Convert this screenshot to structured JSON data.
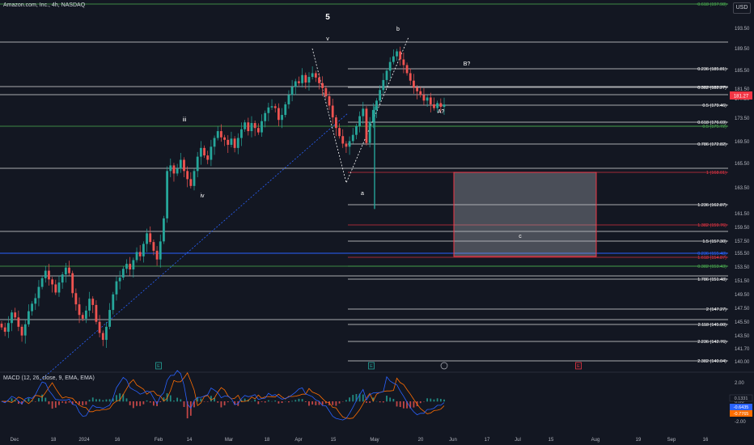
{
  "header": {
    "symbol": "Amazon.com, Inc., 4h, NASDAQ",
    "currency": "USD"
  },
  "macd": {
    "label": "MACD (12, 26, close, 9, EMA, EMA)",
    "values": [
      "0.1331",
      "-0.6435",
      "-0.7765"
    ],
    "axis": [
      "2.00",
      "0.00",
      "-2.00"
    ]
  },
  "colors": {
    "bg": "#131722",
    "up": "#26a69a",
    "down": "#ef5350",
    "fib": "#ffffff",
    "fib_green": "#4caf50",
    "fib_red": "#f23645",
    "fib_blue": "#2962ff",
    "macd": "#2962ff",
    "signal": "#ff6d00"
  },
  "chart_data": {
    "type": "candlestick",
    "y_ticks": [
      "193.50",
      "189.50",
      "185.50",
      "181.50",
      "177.50",
      "173.50",
      "169.50",
      "165.50",
      "163.50",
      "161.50",
      "159.50",
      "157.50",
      "155.50",
      "153.50",
      "151.50",
      "149.50",
      "147.50",
      "145.50",
      "143.50",
      "141.70",
      "140.00"
    ],
    "x_ticks": [
      "Dec",
      "18",
      "2024",
      "16",
      "Feb",
      "14",
      "Mar",
      "18",
      "Apr",
      "15",
      "May",
      "20",
      "Jun",
      "17",
      "Jul",
      "15",
      "Aug",
      "19",
      "Sep",
      "16"
    ],
    "last_price": "181.27",
    "wave_labels": [
      "5",
      "v",
      "b",
      "iii",
      "iv",
      "a",
      "B?",
      "A?",
      "c"
    ],
    "event_badges": [
      "E",
      "E",
      "E"
    ],
    "fib_levels": [
      {
        "label": "0.618 (197.98)",
        "color": "green"
      },
      {
        "label": "0.236 (185.81)",
        "color": "white"
      },
      {
        "label": "0.382 (182.27)",
        "color": "white"
      },
      {
        "label": "0.5 (179.46)",
        "color": "white"
      },
      {
        "label": "0.618 (176.69)",
        "color": "white"
      },
      {
        "label": "0.5 (175.72)",
        "color": "green"
      },
      {
        "label": "0.786 (172.82)",
        "color": "white"
      },
      {
        "label": "1 (168.01)",
        "color": "red"
      },
      {
        "label": "1.236 (162.87)",
        "color": "white"
      },
      {
        "label": "1.382 (159.76)",
        "color": "red"
      },
      {
        "label": "1.5 (157.30)",
        "color": "white"
      },
      {
        "label": "0.236 (155.48)",
        "color": "blue"
      },
      {
        "label": "1.618 (154.87)",
        "color": "red"
      },
      {
        "label": "0.382 (153.43)",
        "color": "green"
      },
      {
        "label": "1.786 (151.48)",
        "color": "white"
      },
      {
        "label": "2 (147.27)",
        "color": "white"
      },
      {
        "label": "2.118 (145.00)",
        "color": "white"
      },
      {
        "label": "2.236 (142.76)",
        "color": "white"
      },
      {
        "label": "2.382 (140.04)",
        "color": "white"
      }
    ],
    "candles_close": [
      145.5,
      144.8,
      146.2,
      147.9,
      147.1,
      145.6,
      144.2,
      146.0,
      148.1,
      149.3,
      150.2,
      152.0,
      153.4,
      154.6,
      153.2,
      152.4,
      151.1,
      152.7,
      154.0,
      155.1,
      154.2,
      151.0,
      149.2,
      147.5,
      146.9,
      148.2,
      150.1,
      149.1,
      146.4,
      144.6,
      143.5,
      145.6,
      148.3,
      150.8,
      152.9,
      153.5,
      154.9,
      155.7,
      154.8,
      156.3,
      157.6,
      156.9,
      158.9,
      160.6,
      159.2,
      157.8,
      156.4,
      159.3,
      163.0,
      170.6,
      171.5,
      170.2,
      171.0,
      172.4,
      170.6,
      169.3,
      168.2,
      170.6,
      172.9,
      174.3,
      173.1,
      172.4,
      174.5,
      175.9,
      177.0,
      176.0,
      175.6,
      174.8,
      175.8,
      174.3,
      175.9,
      177.3,
      178.4,
      177.0,
      178.3,
      177.5,
      176.8,
      178.6,
      179.9,
      180.8,
      181.0,
      180.7,
      178.8,
      179.6,
      181.3,
      182.8,
      184.1,
      185.0,
      184.7,
      186.0,
      184.8,
      185.7,
      186.3,
      185.6,
      184.7,
      183.9,
      182.6,
      181.1,
      179.2,
      177.5,
      176.2,
      175.0,
      174.5,
      175.4,
      176.4,
      177.8,
      179.4,
      180.6,
      175.1,
      178.5,
      180.4,
      181.9,
      183.6,
      185.2,
      186.7,
      188.1,
      189.0,
      189.8,
      188.5,
      187.6,
      186.3,
      185.1,
      184.0,
      183.4,
      182.8,
      181.9,
      182.4,
      181.3,
      180.7,
      181.5,
      180.9,
      181.27
    ]
  }
}
